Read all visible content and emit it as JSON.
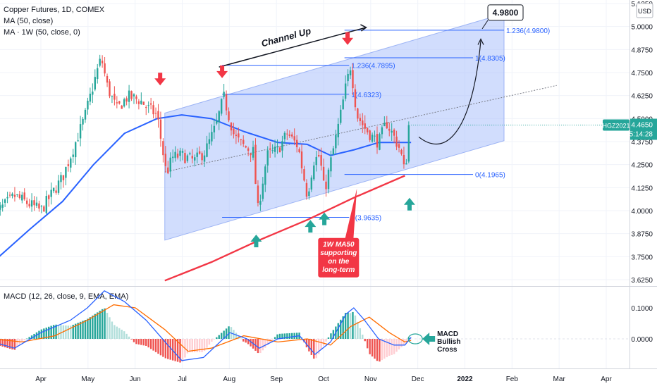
{
  "legend": {
    "symbol_line": "Copper Futures, 1D, COMEX",
    "ma_line": "MA (50, close)",
    "ma_weekly_line": "MA · 1W (50, close, 0)"
  },
  "price_scale": {
    "currency": "USD",
    "current_symbol": "HGZ2021",
    "current_price": "4.4650",
    "countdown": "05:14:28"
  },
  "colors": {
    "up": "#26a69a",
    "down": "#ef5350",
    "ma50": "#2962ff",
    "ma50_weekly": "#f23645",
    "channel": "#b3c7fb",
    "macd": "#2962ff",
    "signal": "#ff6d00",
    "arrow_red": "#f23645",
    "arrow_green": "#26a69a"
  },
  "chart_data": [
    {
      "type": "candlestick",
      "x_axis_labels": [
        "Apr",
        "May",
        "Jun",
        "Jul",
        "Aug",
        "Sep",
        "Oct",
        "Nov",
        "Dec",
        "2022",
        "Feb",
        "Mar",
        "Apr"
      ],
      "y_ticks": [
        "5.1250",
        "5.0000",
        "4.8750",
        "4.7500",
        "4.6250",
        "4.5000",
        "4.3750",
        "4.2500",
        "4.1250",
        "4.0000",
        "3.8750",
        "3.7500",
        "3.6250"
      ],
      "ylim": [
        3.6,
        5.14
      ],
      "price_path": [
        [
          "2021-03-01",
          3.97
        ],
        [
          "2021-03-15",
          4.08
        ],
        [
          "2021-04-01",
          4.0
        ],
        [
          "2021-04-15",
          4.18
        ],
        [
          "2021-04-29",
          4.5
        ],
        [
          "2021-05-07",
          4.75
        ],
        [
          "2021-05-10",
          4.83
        ],
        [
          "2021-05-14",
          4.67
        ],
        [
          "2021-05-20",
          4.55
        ],
        [
          "2021-05-27",
          4.62
        ],
        [
          "2021-06-04",
          4.6
        ],
        [
          "2021-06-10",
          4.55
        ],
        [
          "2021-06-15",
          4.52
        ],
        [
          "2021-06-21",
          4.2
        ],
        [
          "2021-06-25",
          4.29
        ],
        [
          "2021-07-01",
          4.3
        ],
        [
          "2021-07-09",
          4.27
        ],
        [
          "2021-07-16",
          4.32
        ],
        [
          "2021-07-23",
          4.46
        ],
        [
          "2021-07-28",
          4.62
        ],
        [
          "2021-08-04",
          4.4
        ],
        [
          "2021-08-10",
          4.35
        ],
        [
          "2021-08-16",
          4.32
        ],
        [
          "2021-08-19",
          4.0
        ],
        [
          "2021-08-25",
          4.3
        ],
        [
          "2021-09-01",
          4.33
        ],
        [
          "2021-09-07",
          4.42
        ],
        [
          "2021-09-14",
          4.35
        ],
        [
          "2021-09-20",
          4.08
        ],
        [
          "2021-09-24",
          4.27
        ],
        [
          "2021-09-28",
          4.3
        ],
        [
          "2021-10-01",
          4.1
        ],
        [
          "2021-10-06",
          4.3
        ],
        [
          "2021-10-11",
          4.5
        ],
        [
          "2021-10-15",
          4.68
        ],
        [
          "2021-10-18",
          4.79
        ],
        [
          "2021-10-22",
          4.52
        ],
        [
          "2021-10-27",
          4.45
        ],
        [
          "2021-11-01",
          4.4
        ],
        [
          "2021-11-05",
          4.37
        ],
        [
          "2021-11-10",
          4.48
        ],
        [
          "2021-11-15",
          4.4
        ],
        [
          "2021-11-19",
          4.33
        ],
        [
          "2021-11-22",
          4.2
        ],
        [
          "2021-11-24",
          4.38
        ],
        [
          "2021-11-26",
          4.465
        ]
      ],
      "ma50": [
        [
          "2021-03-01",
          3.72
        ],
        [
          "2021-03-25",
          3.9
        ],
        [
          "2021-04-15",
          4.05
        ],
        [
          "2021-05-05",
          4.25
        ],
        [
          "2021-05-25",
          4.42
        ],
        [
          "2021-06-15",
          4.5
        ],
        [
          "2021-07-01",
          4.52
        ],
        [
          "2021-07-20",
          4.5
        ],
        [
          "2021-08-10",
          4.43
        ],
        [
          "2021-09-01",
          4.37
        ],
        [
          "2021-09-20",
          4.36
        ],
        [
          "2021-10-05",
          4.3
        ],
        [
          "2021-10-20",
          4.33
        ],
        [
          "2021-11-05",
          4.37
        ],
        [
          "2021-11-26",
          4.37
        ]
      ],
      "ma50_weekly": [
        [
          "2021-06-20",
          3.62
        ],
        [
          "2021-07-20",
          3.72
        ],
        [
          "2021-08-20",
          3.84
        ],
        [
          "2021-09-20",
          3.95
        ],
        [
          "2021-10-20",
          4.07
        ],
        [
          "2021-11-22",
          4.19
        ]
      ],
      "channel": {
        "top": [
          [
            "2021-06-20",
            4.53
          ],
          [
            "2022-01-25",
            5.07
          ]
        ],
        "bottom": [
          [
            "2021-06-20",
            3.84
          ],
          [
            "2022-01-25",
            4.38
          ]
        ],
        "midline": [
          [
            "2021-06-20",
            4.21
          ],
          [
            "2022-02-28",
            4.68
          ]
        ]
      },
      "fib_levels": [
        {
          "label": "1.236(4.9800)",
          "value": 4.98,
          "from": "2021-10-14",
          "to": "2022-01-25"
        },
        {
          "label": "1(4.8305)",
          "value": 4.8305,
          "from": "2021-10-14",
          "to": "2022-01-05"
        },
        {
          "label": "1.236(4.7895)",
          "value": 4.7895,
          "from": "2021-07-27",
          "to": "2021-10-17"
        },
        {
          "label": "1(4.6323)",
          "value": 4.6323,
          "from": "2021-07-27",
          "to": "2021-10-17"
        },
        {
          "label": "0(4.1965)",
          "value": 4.1965,
          "from": "2021-10-14",
          "to": "2022-01-05"
        },
        {
          "label": "0(3.9635)",
          "value": 3.9635,
          "from": "2021-07-27",
          "to": "2021-10-17"
        }
      ],
      "projection": {
        "points": [
          [
            "2021-12-01",
            4.4
          ],
          [
            "2021-12-20",
            4.35
          ],
          [
            "2022-01-05",
            4.5
          ],
          [
            "2022-01-10",
            4.97
          ]
        ],
        "target_label": "4.9800"
      },
      "annotations": {
        "channel_up": "Channel Up",
        "ma_weekly_note": [
          "1W MA50",
          "supporting",
          "on the",
          "long-term"
        ],
        "macd_note": [
          "MACD",
          "Bullish",
          "Cross"
        ]
      },
      "arrows_down": [
        [
          "2021-06-17",
          4.68
        ],
        [
          "2021-07-27",
          4.72
        ],
        [
          "2021-10-16",
          4.9
        ]
      ],
      "arrows_up": [
        [
          "2021-08-18",
          3.87
        ],
        [
          "2021-09-22",
          3.95
        ],
        [
          "2021-10-01",
          3.99
        ],
        [
          "2021-11-25",
          4.07
        ]
      ]
    },
    {
      "type": "line",
      "title": "MACD (12, 26, close, 9, EMA, EMA)",
      "y_ticks": [
        "0.1000",
        "0.0000"
      ],
      "ylim": [
        -0.085,
        0.145
      ],
      "macd": [
        [
          "2021-03-01",
          -0.01
        ],
        [
          "2021-03-15",
          -0.03
        ],
        [
          "2021-04-01",
          0.02
        ],
        [
          "2021-04-20",
          0.06
        ],
        [
          "2021-05-01",
          0.1
        ],
        [
          "2021-05-12",
          0.155
        ],
        [
          "2021-05-25",
          0.12
        ],
        [
          "2021-06-08",
          0.06
        ],
        [
          "2021-06-22",
          -0.02
        ],
        [
          "2021-07-01",
          -0.07
        ],
        [
          "2021-07-15",
          -0.06
        ],
        [
          "2021-08-01",
          0.02
        ],
        [
          "2021-08-12",
          0.0
        ],
        [
          "2021-08-20",
          -0.03
        ],
        [
          "2021-09-01",
          0.0
        ],
        [
          "2021-09-15",
          0.01
        ],
        [
          "2021-09-25",
          -0.05
        ],
        [
          "2021-10-05",
          -0.01
        ],
        [
          "2021-10-15",
          0.08
        ],
        [
          "2021-10-20",
          0.1
        ],
        [
          "2021-10-27",
          0.06
        ],
        [
          "2021-11-05",
          0.0
        ],
        [
          "2021-11-15",
          -0.02
        ],
        [
          "2021-11-22",
          -0.02
        ],
        [
          "2021-11-26",
          0.005
        ]
      ],
      "signal": [
        [
          "2021-03-01",
          0.0
        ],
        [
          "2021-03-20",
          -0.01
        ],
        [
          "2021-04-10",
          0.01
        ],
        [
          "2021-05-01",
          0.06
        ],
        [
          "2021-05-18",
          0.11
        ],
        [
          "2021-06-01",
          0.1
        ],
        [
          "2021-06-20",
          0.03
        ],
        [
          "2021-07-05",
          -0.04
        ],
        [
          "2021-07-20",
          -0.03
        ],
        [
          "2021-08-10",
          0.01
        ],
        [
          "2021-09-01",
          -0.01
        ],
        [
          "2021-09-20",
          0.0
        ],
        [
          "2021-10-05",
          -0.02
        ],
        [
          "2021-10-18",
          0.04
        ],
        [
          "2021-10-30",
          0.07
        ],
        [
          "2021-11-12",
          0.02
        ],
        [
          "2021-11-22",
          -0.01
        ],
        [
          "2021-11-26",
          -0.005
        ]
      ],
      "histogram_colors": {
        "up_strong": "#26a69a",
        "up_weak": "#b2dfdb",
        "down_strong": "#ef5350",
        "down_weak": "#ffcdd2"
      },
      "x_axis_labels": [
        "Apr",
        "May",
        "Jun",
        "Jul",
        "Aug",
        "Sep",
        "Oct",
        "Nov",
        "Dec",
        "2022",
        "Feb",
        "Mar",
        "Apr"
      ]
    }
  ]
}
